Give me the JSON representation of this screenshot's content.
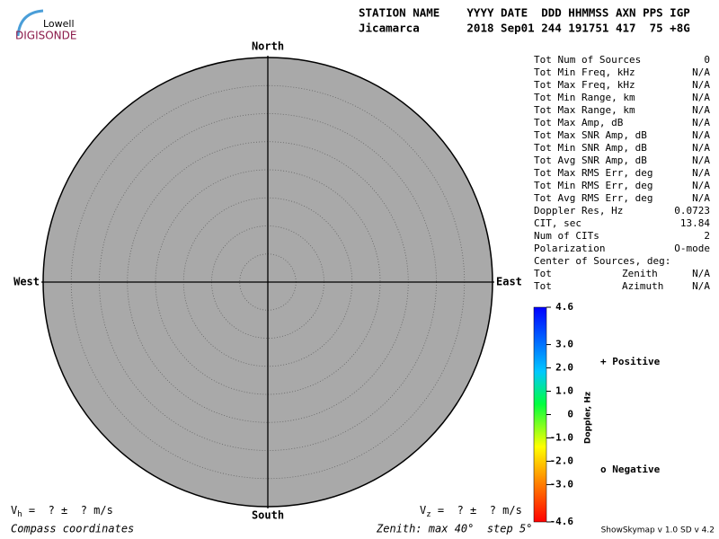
{
  "logo": {
    "top": "Lowell",
    "bottom": "DIGISONDE"
  },
  "header": {
    "line1": "STATION NAME    YYYY DATE  DDD HHMMSS AXN PPS IGP",
    "line2": "Jicamarca       2018 Sep01 244 191751 417  75 +8G"
  },
  "skymap": {
    "north": "North",
    "south": "South",
    "east": "East",
    "west": "West"
  },
  "stats": {
    "dim_color": "#b0b0b0",
    "rows": [
      {
        "label": "Tot Num of Sources",
        "value": 0,
        "dim": true
      },
      {
        "label": "Tot Min Freq, kHz",
        "value": "N/A",
        "dim": true
      },
      {
        "label": "Tot Max Freq, kHz",
        "value": "N/A",
        "dim": true
      },
      {
        "label": "Tot Min Range, km",
        "value": "N/A",
        "dim": true
      },
      {
        "label": "Tot Max Range, km",
        "value": "N/A",
        "dim": true
      },
      {
        "label": "Tot Max Amp, dB",
        "value": "N/A",
        "dim": true
      },
      {
        "label": "Tot Max SNR Amp, dB",
        "value": "N/A",
        "dim": true
      },
      {
        "label": "Tot Min SNR Amp, dB",
        "value": "N/A",
        "dim": true
      },
      {
        "label": "Tot Avg SNR Amp, dB",
        "value": "N/A",
        "dim": true
      },
      {
        "label": "Tot Max RMS Err, deg",
        "value": "N/A",
        "dim": true
      },
      {
        "label": "Tot Min RMS Err, deg",
        "value": "N/A",
        "dim": true
      },
      {
        "label": "Tot Avg RMS Err, deg",
        "value": "N/A",
        "dim": true
      },
      {
        "label": "Doppler Res, Hz",
        "value": 0.0723
      },
      {
        "label": "CIT, sec",
        "value": 13.84
      },
      {
        "label": "Num of CITs",
        "value": 2
      },
      {
        "label": "Polarization",
        "value": "O-mode"
      },
      {
        "label": "Center of Sources, deg:"
      },
      {
        "label": "Tot",
        "sub": "Zenith",
        "value": "N/A",
        "dim": true
      },
      {
        "label": "Tot",
        "sub": "Azimuth",
        "value": "N/A",
        "dim": true
      }
    ]
  },
  "colorbar": {
    "title": "Doppler, Hz",
    "lim": [
      4.6,
      -4.6
    ],
    "ticks": [
      4.6,
      {
        "value": 3,
        "label": "3.0"
      },
      {
        "value": 2,
        "label": "2.0"
      },
      {
        "value": 1,
        "label": "1.0"
      },
      0,
      {
        "value": -1,
        "label": "-1.0"
      },
      {
        "value": -2,
        "label": "-2.0"
      },
      {
        "value": -3,
        "label": "-3.0"
      },
      -4.6
    ]
  },
  "legend": {
    "positive": {
      "symbol": "+",
      "label": "Positive",
      "color": "#0000c0"
    },
    "negative": {
      "symbol": "o",
      "label": "Negative",
      "color": "#d00000"
    }
  },
  "footer": {
    "vh": {
      "symbol": "V",
      "sub": "h",
      "text": "=  ? ±  ? m/s"
    },
    "vz": {
      "symbol": "V",
      "sub": "z",
      "text": "=  ? ±  ? m/s"
    },
    "compass": "Compass coordinates",
    "zenith": "Zenith: max 40°  step 5°",
    "version": "ShowSkymap v 1.0  SD v 4.2"
  }
}
